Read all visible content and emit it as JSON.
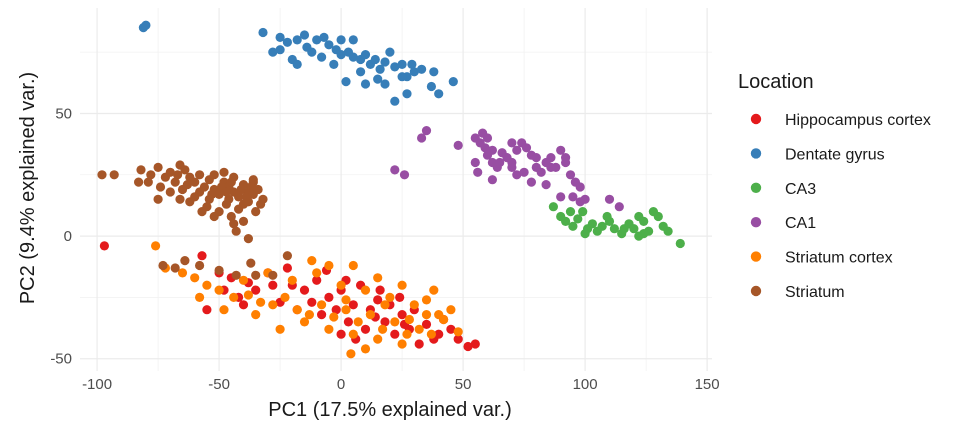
{
  "chart_data": {
    "type": "scatter",
    "xlabel": "PC1 (17.5% explained var.)",
    "ylabel": "PC2 (9.4% explained var.)",
    "xlim": [
      -107,
      152
    ],
    "ylim": [
      -55,
      93
    ],
    "xticks": [
      -100,
      -50,
      0,
      50,
      100,
      150
    ],
    "yticks": [
      -50,
      0,
      50
    ],
    "xtick_labels": [
      "-100",
      "-50",
      "0",
      "50",
      "100",
      "150"
    ],
    "ytick_labels": [
      "-50",
      "0",
      "50"
    ],
    "grid": true,
    "legend": {
      "title": "Location",
      "placement": "right",
      "entries": [
        "Hippocampus cortex",
        "Dentate gyrus",
        "CA3",
        "CA1",
        "Striatum cortex",
        "Striatum"
      ]
    },
    "series": [
      {
        "name": "Hippocampus cortex",
        "color": "#e41a1c",
        "points": [
          [
            -97,
            -4
          ],
          [
            -57,
            -8
          ],
          [
            -50,
            -15
          ],
          [
            -45,
            -17
          ],
          [
            -38,
            -19
          ],
          [
            -30,
            -15
          ],
          [
            -22,
            -13
          ],
          [
            -20,
            -20
          ],
          [
            -15,
            -22
          ],
          [
            -10,
            -18
          ],
          [
            -5,
            -25
          ],
          [
            0,
            -22
          ],
          [
            5,
            -28
          ],
          [
            8,
            -20
          ],
          [
            12,
            -30
          ],
          [
            15,
            -26
          ],
          [
            18,
            -35
          ],
          [
            20,
            -28
          ],
          [
            25,
            -32
          ],
          [
            28,
            -38
          ],
          [
            30,
            -30
          ],
          [
            35,
            -36
          ],
          [
            40,
            -40
          ],
          [
            45,
            -38
          ],
          [
            48,
            -42
          ],
          [
            55,
            -44
          ],
          [
            52,
            -45
          ],
          [
            -55,
            -30
          ],
          [
            -42,
            -25
          ],
          [
            -35,
            -22
          ],
          [
            -25,
            -27
          ],
          [
            -18,
            -30
          ],
          [
            -12,
            -27
          ],
          [
            -8,
            -32
          ],
          [
            -2,
            -30
          ],
          [
            3,
            -35
          ],
          [
            10,
            -38
          ],
          [
            14,
            -33
          ],
          [
            22,
            -40
          ],
          [
            26,
            -36
          ],
          [
            32,
            -44
          ],
          [
            38,
            -42
          ],
          [
            0,
            -40
          ],
          [
            6,
            -42
          ],
          [
            -28,
            -20
          ],
          [
            -6,
            -14
          ],
          [
            2,
            -18
          ],
          [
            16,
            -22
          ],
          [
            24,
            -25
          ],
          [
            42,
            -34
          ],
          [
            -48,
            -22
          ],
          [
            -40,
            -28
          ]
        ]
      },
      {
        "name": "Dentate gyrus",
        "color": "#377eb8",
        "points": [
          [
            -81,
            85
          ],
          [
            -80,
            86
          ],
          [
            -32,
            83
          ],
          [
            -25,
            81
          ],
          [
            -22,
            79
          ],
          [
            -18,
            80
          ],
          [
            -15,
            82
          ],
          [
            -10,
            80
          ],
          [
            -7,
            81
          ],
          [
            -5,
            78
          ],
          [
            -2,
            76
          ],
          [
            0,
            74
          ],
          [
            3,
            75
          ],
          [
            5,
            73
          ],
          [
            8,
            72
          ],
          [
            10,
            74
          ],
          [
            12,
            70
          ],
          [
            14,
            72
          ],
          [
            16,
            68
          ],
          [
            18,
            71
          ],
          [
            20,
            75
          ],
          [
            22,
            69
          ],
          [
            25,
            70
          ],
          [
            27,
            65
          ],
          [
            30,
            67
          ],
          [
            33,
            68
          ],
          [
            37,
            61
          ],
          [
            40,
            58
          ],
          [
            15,
            64
          ],
          [
            8,
            67
          ],
          [
            -3,
            70
          ],
          [
            -8,
            73
          ],
          [
            -12,
            75
          ],
          [
            -20,
            72
          ],
          [
            -25,
            76
          ],
          [
            -28,
            75
          ],
          [
            -18,
            70
          ],
          [
            5,
            80
          ],
          [
            2,
            63
          ],
          [
            10,
            62
          ],
          [
            18,
            62
          ],
          [
            22,
            55
          ],
          [
            27,
            58
          ],
          [
            29,
            70
          ],
          [
            25,
            65
          ],
          [
            38,
            67
          ],
          [
            46,
            63
          ],
          [
            -14,
            77
          ],
          [
            0,
            80
          ]
        ]
      },
      {
        "name": "CA3",
        "color": "#4daf4a",
        "points": [
          [
            87,
            12
          ],
          [
            90,
            8
          ],
          [
            92,
            6
          ],
          [
            95,
            4
          ],
          [
            97,
            7
          ],
          [
            99,
            10
          ],
          [
            101,
            3
          ],
          [
            103,
            5
          ],
          [
            105,
            2
          ],
          [
            107,
            4
          ],
          [
            110,
            6
          ],
          [
            112,
            3
          ],
          [
            115,
            1
          ],
          [
            118,
            5
          ],
          [
            120,
            3
          ],
          [
            122,
            8
          ],
          [
            124,
            6
          ],
          [
            126,
            2
          ],
          [
            128,
            10
          ],
          [
            130,
            8
          ],
          [
            132,
            4
          ],
          [
            134,
            2
          ],
          [
            139,
            -3
          ],
          [
            124,
            1
          ],
          [
            100,
            1
          ],
          [
            94,
            10
          ],
          [
            109,
            8
          ],
          [
            116,
            3
          ],
          [
            122,
            0
          ]
        ]
      },
      {
        "name": "CA1",
        "color": "#984ea3",
        "points": [
          [
            33,
            40
          ],
          [
            35,
            43
          ],
          [
            48,
            37
          ],
          [
            55,
            40
          ],
          [
            57,
            38
          ],
          [
            59,
            36
          ],
          [
            60,
            33
          ],
          [
            62,
            30
          ],
          [
            64,
            28
          ],
          [
            66,
            34
          ],
          [
            68,
            32
          ],
          [
            70,
            30
          ],
          [
            72,
            35
          ],
          [
            74,
            38
          ],
          [
            76,
            36
          ],
          [
            78,
            33
          ],
          [
            80,
            28
          ],
          [
            82,
            26
          ],
          [
            84,
            30
          ],
          [
            86,
            32
          ],
          [
            88,
            28
          ],
          [
            90,
            35
          ],
          [
            92,
            30
          ],
          [
            94,
            25
          ],
          [
            96,
            22
          ],
          [
            98,
            20
          ],
          [
            100,
            15
          ],
          [
            22,
            27
          ],
          [
            26,
            25
          ],
          [
            56,
            26
          ],
          [
            62,
            23
          ],
          [
            70,
            28
          ],
          [
            75,
            26
          ],
          [
            78,
            22
          ],
          [
            84,
            21
          ],
          [
            90,
            16
          ],
          [
            95,
            16
          ],
          [
            98,
            14
          ],
          [
            110,
            15
          ],
          [
            58,
            42
          ],
          [
            62,
            35
          ],
          [
            65,
            30
          ],
          [
            72,
            25
          ],
          [
            80,
            32
          ],
          [
            86,
            28
          ],
          [
            55,
            30
          ],
          [
            60,
            40
          ],
          [
            70,
            38
          ],
          [
            92,
            32
          ],
          [
            114,
            12
          ]
        ]
      },
      {
        "name": "Striatum cortex",
        "color": "#ff7f00",
        "points": [
          [
            -76,
            -4
          ],
          [
            -72,
            -13
          ],
          [
            -65,
            -15
          ],
          [
            -60,
            -17
          ],
          [
            -55,
            -20
          ],
          [
            -50,
            -22
          ],
          [
            -44,
            -25
          ],
          [
            -38,
            -24
          ],
          [
            -33,
            -27
          ],
          [
            -28,
            -28
          ],
          [
            -23,
            -25
          ],
          [
            -18,
            -30
          ],
          [
            -13,
            -32
          ],
          [
            -8,
            -28
          ],
          [
            -3,
            -33
          ],
          [
            2,
            -30
          ],
          [
            7,
            -35
          ],
          [
            12,
            -32
          ],
          [
            17,
            -38
          ],
          [
            22,
            -35
          ],
          [
            27,
            -40
          ],
          [
            32,
            -38
          ],
          [
            37,
            -40
          ],
          [
            42,
            -34
          ],
          [
            45,
            -30
          ],
          [
            48,
            -39
          ],
          [
            -30,
            -15
          ],
          [
            -20,
            -18
          ],
          [
            -10,
            -15
          ],
          [
            0,
            -20
          ],
          [
            10,
            -22
          ],
          [
            20,
            -25
          ],
          [
            30,
            -28
          ],
          [
            40,
            -32
          ],
          [
            -40,
            -18
          ],
          [
            -25,
            -38
          ],
          [
            -15,
            -35
          ],
          [
            -5,
            -38
          ],
          [
            5,
            -40
          ],
          [
            15,
            -42
          ],
          [
            25,
            -44
          ],
          [
            4,
            -48
          ],
          [
            10,
            -46
          ],
          [
            -5,
            -12
          ],
          [
            5,
            -12
          ],
          [
            15,
            -17
          ],
          [
            25,
            -20
          ],
          [
            35,
            -26
          ],
          [
            38,
            -22
          ],
          [
            -35,
            -32
          ],
          [
            -48,
            -30
          ],
          [
            -58,
            -25
          ],
          [
            -12,
            -10
          ],
          [
            2,
            -26
          ],
          [
            18,
            -28
          ],
          [
            28,
            -34
          ],
          [
            35,
            -32
          ]
        ]
      },
      {
        "name": "Striatum",
        "color": "#a65628",
        "points": [
          [
            -98,
            25
          ],
          [
            -93,
            25
          ],
          [
            -83,
            22
          ],
          [
            -82,
            27
          ],
          [
            -78,
            25
          ],
          [
            -75,
            28
          ],
          [
            -72,
            24
          ],
          [
            -70,
            26
          ],
          [
            -68,
            22
          ],
          [
            -66,
            29
          ],
          [
            -64,
            27
          ],
          [
            -62,
            24
          ],
          [
            -60,
            22
          ],
          [
            -58,
            25
          ],
          [
            -56,
            20
          ],
          [
            -54,
            23
          ],
          [
            -52,
            19
          ],
          [
            -50,
            17
          ],
          [
            -48,
            22
          ],
          [
            -46,
            20
          ],
          [
            -44,
            18
          ],
          [
            -42,
            16
          ],
          [
            -40,
            21
          ],
          [
            -38,
            18
          ],
          [
            -36,
            17
          ],
          [
            -34,
            19
          ],
          [
            -32,
            15
          ],
          [
            -62,
            14
          ],
          [
            -58,
            18
          ],
          [
            -55,
            12
          ],
          [
            -50,
            10
          ],
          [
            -47,
            13
          ],
          [
            -45,
            8
          ],
          [
            -42,
            11
          ],
          [
            -40,
            6
          ],
          [
            -52,
            25
          ],
          [
            -48,
            26
          ],
          [
            -44,
            24
          ],
          [
            -36,
            22
          ],
          [
            -35,
            10
          ],
          [
            -70,
            18
          ],
          [
            -74,
            20
          ],
          [
            -66,
            15
          ],
          [
            -54,
            15
          ],
          [
            -46,
            15
          ],
          [
            -40,
            13
          ],
          [
            -38,
            14
          ],
          [
            -43,
            2
          ],
          [
            -36,
            23
          ],
          [
            -44,
            5
          ],
          [
            -38,
            -1
          ],
          [
            -52,
            8
          ],
          [
            -60,
            16
          ],
          [
            -65,
            19
          ],
          [
            -57,
            10
          ],
          [
            -49,
            20
          ],
          [
            -45,
            22
          ],
          [
            -41,
            19
          ],
          [
            -39,
            16
          ],
          [
            -37,
            20
          ],
          [
            -33,
            13
          ],
          [
            -47,
            18
          ],
          [
            -53,
            17
          ],
          [
            -63,
            21
          ],
          [
            -67,
            25
          ],
          [
            -79,
            22
          ],
          [
            -75,
            15
          ],
          [
            -58,
            -12
          ],
          [
            -64,
            -10
          ],
          [
            -37,
            -11
          ],
          [
            -22,
            -8
          ],
          [
            -73,
            -12
          ],
          [
            -68,
            -13
          ],
          [
            -50,
            -14
          ],
          [
            -43,
            -16
          ],
          [
            -35,
            -16
          ],
          [
            -28,
            -16
          ]
        ]
      }
    ]
  }
}
